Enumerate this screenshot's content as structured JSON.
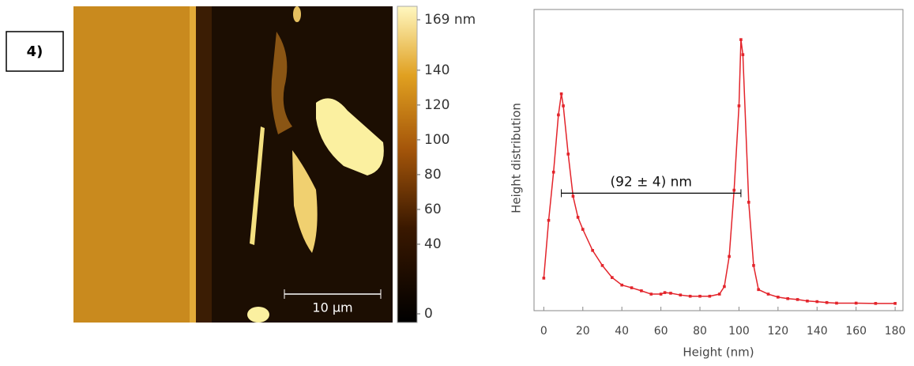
{
  "panel_label": "4)",
  "image": {
    "scale_bar": "10 µm",
    "colorbar": {
      "lim": [
        0,
        169
      ],
      "ticks": [
        {
          "value": 169,
          "label": "169 nm"
        },
        140,
        120,
        100,
        80,
        60,
        40,
        0
      ]
    }
  },
  "chart_data": {
    "type": "line",
    "color": "#e3242b",
    "x": [
      0,
      2.5,
      5,
      7.5,
      9,
      10,
      12.5,
      15,
      17.5,
      20,
      25,
      30,
      35,
      40,
      45,
      50,
      55,
      60,
      62,
      65,
      70,
      75,
      80,
      85,
      90,
      92.5,
      95,
      97.5,
      100,
      101,
      102,
      105,
      107.5,
      110,
      115,
      120,
      125,
      130,
      135,
      140,
      145,
      150,
      160,
      170,
      180
    ],
    "values": [
      10.8,
      30,
      46,
      65,
      72,
      68,
      52,
      38,
      31,
      27,
      20,
      15,
      11,
      8.5,
      7.6,
      6.6,
      5.5,
      5.5,
      6,
      5.8,
      5.2,
      4.8,
      4.8,
      4.8,
      5.5,
      8,
      18,
      40,
      68,
      90,
      85,
      36,
      15,
      7,
      5.5,
      4.5,
      4,
      3.7,
      3.2,
      3,
      2.7,
      2.5,
      2.5,
      2.4,
      2.4
    ],
    "xlim": [
      -5,
      184
    ],
    "xticks": [
      0,
      20,
      40,
      60,
      80,
      100,
      120,
      140,
      160,
      180
    ],
    "ylim": [
      0,
      100
    ],
    "xlabel": "Height (nm)",
    "ylabel": "Height distribution",
    "annotation": {
      "text": "(92 ± 4) nm",
      "x": [
        9,
        101
      ],
      "y": 39
    }
  }
}
